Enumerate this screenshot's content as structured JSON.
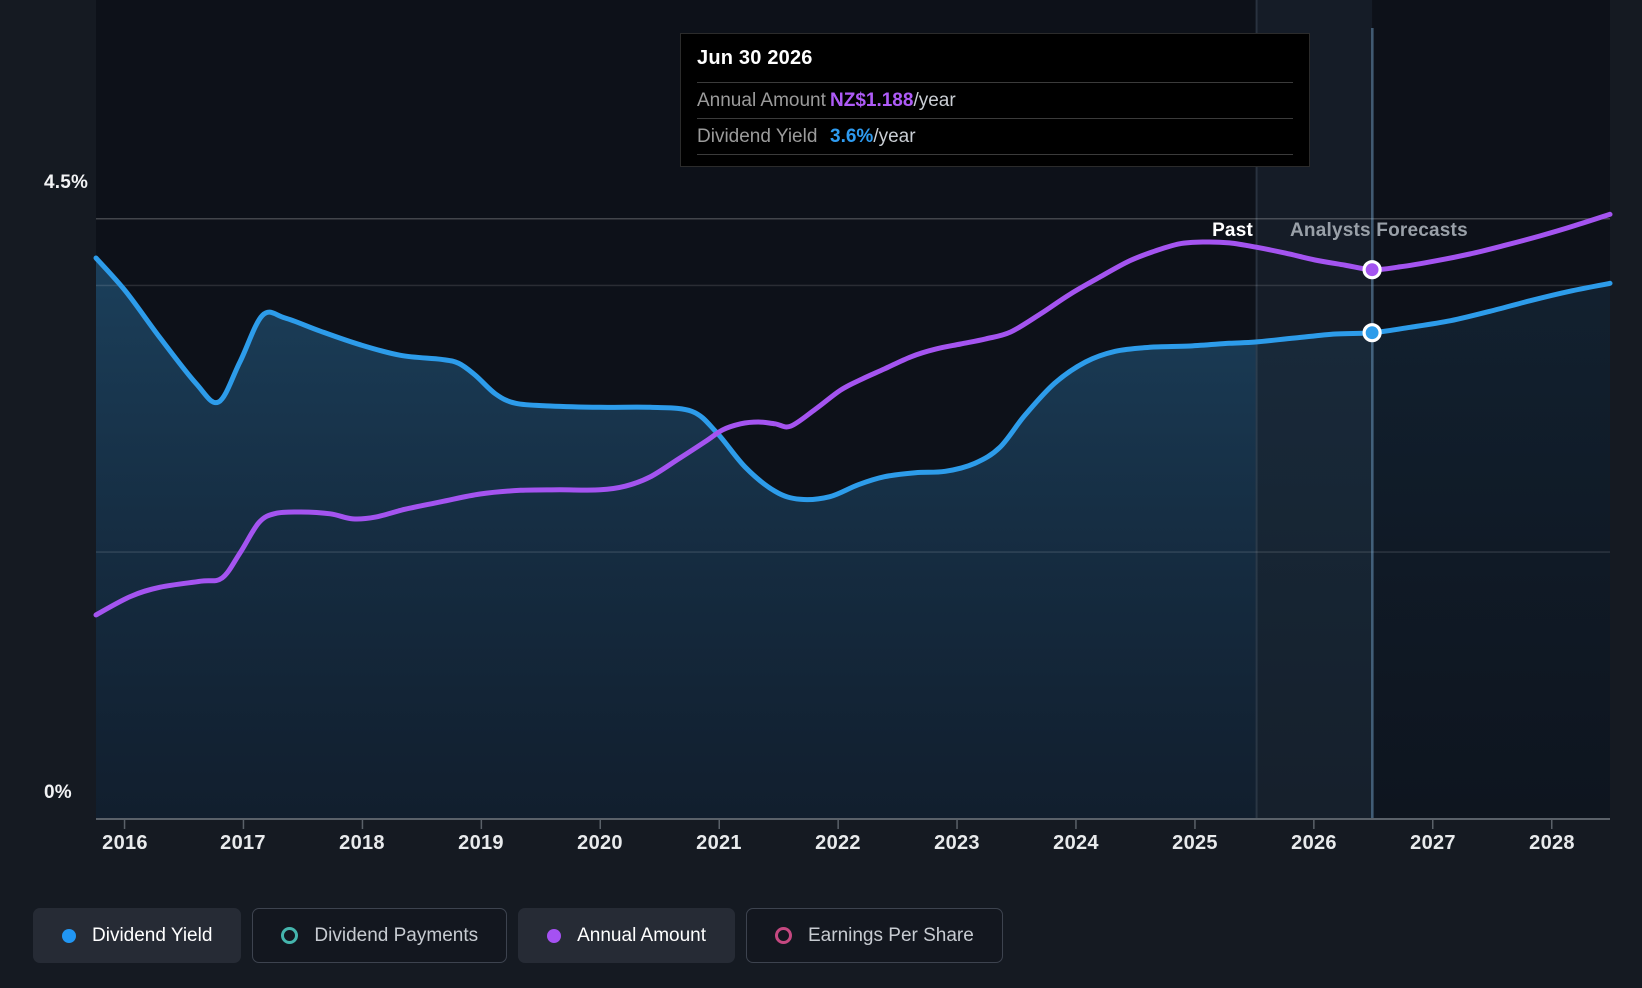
{
  "y_axis": {
    "top_label": "4.5%",
    "bottom_label": "0%"
  },
  "annotations": {
    "past": "Past",
    "forecast": "Analysts Forecasts"
  },
  "tooltip": {
    "date": "Jun 30 2026",
    "rows": [
      {
        "label": "Annual Amount",
        "value": "NZ$1.188",
        "suffix": "/year",
        "color": "#AE5BF7"
      },
      {
        "label": "Dividend Yield",
        "value": "3.6%",
        "suffix": "/year",
        "color": "#2E9BF0"
      }
    ]
  },
  "legend": [
    {
      "label": "Dividend Yield",
      "color": "#2196F3",
      "filled": true,
      "active": true
    },
    {
      "label": "Dividend Payments",
      "color": "#45B5AD",
      "filled": false,
      "active": false
    },
    {
      "label": "Annual Amount",
      "color": "#A551F2",
      "filled": true,
      "active": true
    },
    {
      "label": "Earnings Per Share",
      "color": "#C54880",
      "filled": false,
      "active": false
    }
  ],
  "chart_data": {
    "type": "area+line",
    "title": "Dividend yield and annual dividend amount, past and analysts forecasts",
    "xlim": [
      2015.76,
      2028.49
    ],
    "x_ticks": [
      2016,
      2017,
      2018,
      2019,
      2020,
      2021,
      2022,
      2023,
      2024,
      2025,
      2026,
      2027,
      2028
    ],
    "ylim_left_percent": [
      0,
      4.5
    ],
    "ylim_right_nzd": [
      0,
      1.3
    ],
    "gridlines_percent": [
      4.5,
      4.0,
      2.0
    ],
    "grid": true,
    "legend_position": "bottom",
    "past_forecast_divider_x": 2025.51,
    "hover_x": 2026.49,
    "series": [
      {
        "name": "Dividend Yield",
        "unit": "%",
        "axis": "left",
        "color": "#2D9CEA",
        "area": true,
        "points": [
          [
            2015.76,
            4.2
          ],
          [
            2016.01,
            3.95
          ],
          [
            2016.3,
            3.6
          ],
          [
            2016.6,
            3.26
          ],
          [
            2016.79,
            3.12
          ],
          [
            2016.97,
            3.42
          ],
          [
            2017.16,
            3.77
          ],
          [
            2017.35,
            3.75
          ],
          [
            2017.65,
            3.65
          ],
          [
            2017.98,
            3.55
          ],
          [
            2018.32,
            3.47
          ],
          [
            2018.66,
            3.44
          ],
          [
            2018.81,
            3.41
          ],
          [
            2018.95,
            3.32
          ],
          [
            2019.12,
            3.18
          ],
          [
            2019.29,
            3.11
          ],
          [
            2019.58,
            3.09
          ],
          [
            2020.0,
            3.08
          ],
          [
            2020.42,
            3.08
          ],
          [
            2020.77,
            3.05
          ],
          [
            2020.98,
            2.89
          ],
          [
            2021.22,
            2.63
          ],
          [
            2021.47,
            2.45
          ],
          [
            2021.68,
            2.39
          ],
          [
            2021.93,
            2.41
          ],
          [
            2022.17,
            2.5
          ],
          [
            2022.39,
            2.56
          ],
          [
            2022.65,
            2.59
          ],
          [
            2022.9,
            2.6
          ],
          [
            2023.15,
            2.66
          ],
          [
            2023.36,
            2.78
          ],
          [
            2023.57,
            3.02
          ],
          [
            2023.82,
            3.26
          ],
          [
            2024.08,
            3.42
          ],
          [
            2024.33,
            3.5
          ],
          [
            2024.62,
            3.53
          ],
          [
            2024.96,
            3.54
          ],
          [
            2025.29,
            3.56
          ],
          [
            2025.51,
            3.57
          ],
          [
            2025.84,
            3.6
          ],
          [
            2026.18,
            3.63
          ],
          [
            2026.49,
            3.64
          ],
          [
            2026.81,
            3.68
          ],
          [
            2027.15,
            3.73
          ],
          [
            2027.48,
            3.8
          ],
          [
            2027.82,
            3.88
          ],
          [
            2028.15,
            3.95
          ],
          [
            2028.49,
            4.01
          ]
        ]
      },
      {
        "name": "Annual Amount",
        "unit": "NZ$/year",
        "axis": "right",
        "color": "#A454F0",
        "area": false,
        "points": [
          [
            2015.76,
            0.44
          ],
          [
            2016.05,
            0.48
          ],
          [
            2016.3,
            0.5
          ],
          [
            2016.64,
            0.513
          ],
          [
            2016.82,
            0.52
          ],
          [
            2016.97,
            0.574
          ],
          [
            2017.13,
            0.64
          ],
          [
            2017.27,
            0.66
          ],
          [
            2017.48,
            0.663
          ],
          [
            2017.73,
            0.659
          ],
          [
            2017.92,
            0.648
          ],
          [
            2018.11,
            0.652
          ],
          [
            2018.36,
            0.669
          ],
          [
            2018.66,
            0.685
          ],
          [
            2018.99,
            0.702
          ],
          [
            2019.33,
            0.71
          ],
          [
            2019.66,
            0.711
          ],
          [
            2020.0,
            0.711
          ],
          [
            2020.21,
            0.719
          ],
          [
            2020.42,
            0.739
          ],
          [
            2020.67,
            0.78
          ],
          [
            2020.88,
            0.815
          ],
          [
            2021.03,
            0.841
          ],
          [
            2021.18,
            0.854
          ],
          [
            2021.33,
            0.858
          ],
          [
            2021.47,
            0.854
          ],
          [
            2021.6,
            0.849
          ],
          [
            2021.81,
            0.886
          ],
          [
            2022.02,
            0.927
          ],
          [
            2022.2,
            0.951
          ],
          [
            2022.39,
            0.973
          ],
          [
            2022.61,
            0.999
          ],
          [
            2022.82,
            1.016
          ],
          [
            2023.03,
            1.027
          ],
          [
            2023.24,
            1.038
          ],
          [
            2023.45,
            1.053
          ],
          [
            2023.7,
            1.092
          ],
          [
            2023.95,
            1.135
          ],
          [
            2024.2,
            1.172
          ],
          [
            2024.45,
            1.207
          ],
          [
            2024.66,
            1.228
          ],
          [
            2024.87,
            1.244
          ],
          [
            2025.08,
            1.248
          ],
          [
            2025.29,
            1.246
          ],
          [
            2025.51,
            1.237
          ],
          [
            2025.76,
            1.224
          ],
          [
            2026.01,
            1.209
          ],
          [
            2026.26,
            1.198
          ],
          [
            2026.49,
            1.188
          ],
          [
            2026.72,
            1.194
          ],
          [
            2027.02,
            1.207
          ],
          [
            2027.31,
            1.222
          ],
          [
            2027.61,
            1.241
          ],
          [
            2027.9,
            1.261
          ],
          [
            2028.19,
            1.283
          ],
          [
            2028.49,
            1.308
          ]
        ]
      }
    ],
    "markers": [
      {
        "series": "Dividend Yield",
        "x": 2026.49,
        "value": 3.64
      },
      {
        "series": "Annual Amount",
        "x": 2026.49,
        "value": 1.188
      }
    ],
    "colors": {
      "plot_background": "#0D1119",
      "page_background": "#151A22",
      "gridline": "#3E4754",
      "axis_line": "#5A6169"
    }
  }
}
